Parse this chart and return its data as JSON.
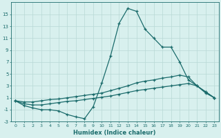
{
  "xlabel": "Humidex (Indice chaleur)",
  "x": [
    0,
    1,
    2,
    3,
    4,
    5,
    6,
    7,
    8,
    9,
    10,
    11,
    12,
    13,
    14,
    15,
    16,
    17,
    18,
    19,
    20,
    21,
    22,
    23
  ],
  "line1": [
    0.5,
    -0.3,
    -0.7,
    -1.0,
    -1.0,
    -1.2,
    -1.8,
    -2.2,
    -2.5,
    -0.5,
    3.5,
    8.0,
    13.5,
    16.0,
    15.5,
    12.5,
    11.0,
    9.5,
    9.5,
    7.0,
    4.0,
    3.0,
    2.0,
    1.0
  ],
  "line2": [
    0.5,
    0.3,
    0.3,
    0.5,
    0.7,
    0.8,
    1.0,
    1.2,
    1.4,
    1.6,
    1.8,
    2.2,
    2.6,
    3.0,
    3.5,
    3.8,
    4.0,
    4.3,
    4.5,
    4.8,
    4.5,
    3.0,
    2.0,
    1.0
  ],
  "line3": [
    0.5,
    0.0,
    -0.2,
    -0.2,
    0.0,
    0.2,
    0.4,
    0.5,
    0.7,
    0.9,
    1.1,
    1.3,
    1.6,
    1.9,
    2.2,
    2.4,
    2.6,
    2.8,
    3.0,
    3.2,
    3.4,
    3.0,
    1.8,
    1.0
  ],
  "bg_color": "#d8f0ee",
  "grid_color": "#b8d8d5",
  "line_color": "#1a6b6b",
  "ylim": [
    -3,
    17
  ],
  "yticks": [
    -3,
    -1,
    1,
    3,
    5,
    7,
    9,
    11,
    13,
    15
  ],
  "xlim": [
    -0.5,
    23.5
  ],
  "figsize": [
    3.2,
    2.0
  ],
  "dpi": 100
}
